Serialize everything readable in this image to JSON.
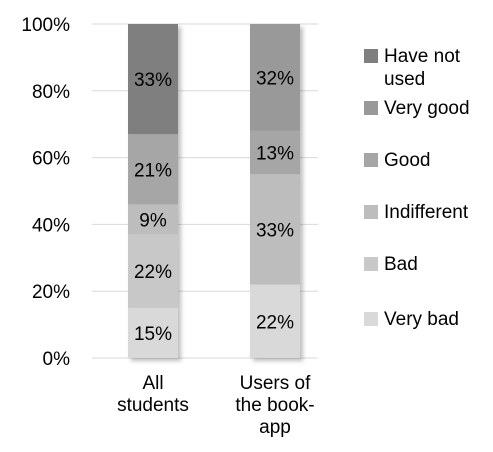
{
  "chart_data": {
    "type": "bar",
    "stacked": true,
    "percent": true,
    "ylim": [
      0,
      100
    ],
    "yticks": [
      "0%",
      "20%",
      "40%",
      "60%",
      "80%",
      "100%"
    ],
    "categories": [
      [
        "All",
        "students"
      ],
      [
        "Users of",
        "the book-",
        "app"
      ]
    ],
    "series": [
      {
        "name": "Very bad",
        "color": "#d9d9d9",
        "values": [
          15,
          22
        ]
      },
      {
        "name": "Bad",
        "color": "#c8c8c8",
        "values": [
          22,
          0
        ]
      },
      {
        "name": "Indifferent",
        "color": "#bdbdbd",
        "values": [
          9,
          33
        ]
      },
      {
        "name": "Good",
        "color": "#a6a6a6",
        "values": [
          21,
          13
        ]
      },
      {
        "name": "Very good",
        "color": "#999999",
        "values": [
          0,
          32
        ]
      },
      {
        "name": "Have not used",
        "color": "#7f7f7f",
        "values": [
          33,
          0
        ]
      }
    ],
    "data_labels": [
      [
        "15%",
        "22%",
        "9%",
        "21%",
        "",
        "33%"
      ],
      [
        "22%",
        "",
        "33%",
        "13%",
        "32%",
        ""
      ]
    ],
    "legend_lines": {
      "Have not used": [
        "Have not",
        "used"
      ]
    },
    "legend_position": "right",
    "grid": true
  }
}
